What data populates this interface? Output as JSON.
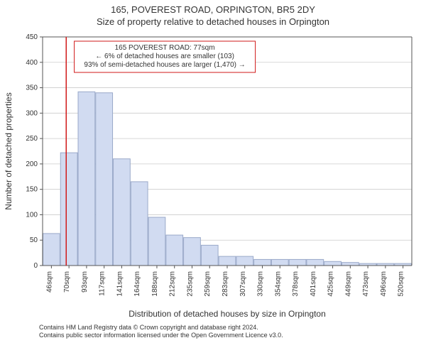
{
  "header": {
    "title": "165, POVEREST ROAD, ORPINGTON, BR5 2DY",
    "subtitle": "Size of property relative to detached houses in Orpington"
  },
  "chart": {
    "type": "histogram",
    "background_color": "#ffffff",
    "plot_border_color": "#555555",
    "grid_color": "#cccccc",
    "bar_fill": "#d1dbf1",
    "bar_stroke": "#9aa9c9",
    "marker_color": "#d11a1a",
    "ylabel": "Number of detached properties",
    "xlabel": "Distribution of detached houses by size in Orpington",
    "label_fontsize": 12,
    "tick_fontsize": 10,
    "ylim": [
      0,
      450
    ],
    "ytick_step": 50,
    "categories": [
      "46sqm",
      "70sqm",
      "93sqm",
      "117sqm",
      "141sqm",
      "164sqm",
      "188sqm",
      "212sqm",
      "235sqm",
      "259sqm",
      "283sqm",
      "307sqm",
      "330sqm",
      "354sqm",
      "378sqm",
      "401sqm",
      "425sqm",
      "449sqm",
      "473sqm",
      "496sqm",
      "520sqm"
    ],
    "values": [
      63,
      222,
      342,
      340,
      210,
      165,
      95,
      60,
      55,
      40,
      18,
      18,
      12,
      12,
      12,
      12,
      8,
      6,
      4,
      4,
      4
    ],
    "marker_category_index": 1,
    "annotation": {
      "lines": [
        "165 POVEREST ROAD: 77sqm",
        "← 6% of detached houses are smaller (103)",
        "93% of semi-detached houses are larger (1,470) →"
      ],
      "border_color": "#d11a1a"
    }
  },
  "footer": {
    "line1": "Contains HM Land Registry data © Crown copyright and database right 2024.",
    "line2": "Contains public sector information licensed under the Open Government Licence v3.0."
  }
}
